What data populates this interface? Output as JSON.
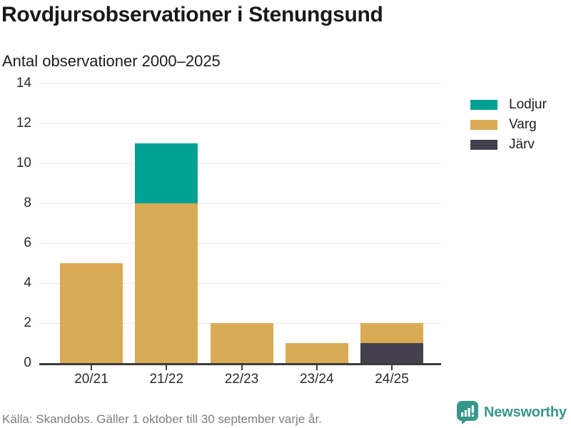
{
  "header": {
    "title": "Rovdjursobservationer i Stenungsund",
    "subtitle": "Antal observationer 2000–2025"
  },
  "chart_data": {
    "type": "bar",
    "stacked": true,
    "title": "Rovdjursobservationer i Stenungsund",
    "subtitle": "Antal observationer 2000–2025",
    "categories": [
      "20/21",
      "21/22",
      "22/23",
      "23/24",
      "24/25"
    ],
    "series": [
      {
        "name": "Lodjur",
        "color": "#00a094",
        "values": [
          0,
          3,
          0,
          0,
          0
        ]
      },
      {
        "name": "Varg",
        "color": "#d9ab55",
        "values": [
          5,
          8,
          2,
          1,
          1
        ]
      },
      {
        "name": "Järv",
        "color": "#44404e",
        "values": [
          0,
          0,
          0,
          0,
          1
        ]
      }
    ],
    "stack_order_bottom_to_top": [
      "Järv",
      "Varg",
      "Lodjur"
    ],
    "totals": [
      5,
      11,
      2,
      1,
      2
    ],
    "yticks": [
      0,
      2,
      4,
      6,
      8,
      10,
      12,
      14
    ],
    "ylim": [
      0,
      14
    ],
    "grid": true,
    "legend_position": "right",
    "xlabel": "",
    "ylabel": ""
  },
  "footer": {
    "source": "Källa: Skandobs. Gäller 1 oktober till 30 september varje år.",
    "brand": "Newsworthy"
  },
  "colors": {
    "lodjur_teal": "#00a094",
    "varg_tan": "#d9ab55",
    "jarv_dark": "#44404e",
    "brand_teal": "#38978b",
    "gridline": "#e7e7e7",
    "axis": "#3c3c3c",
    "footer_text": "#7e7e7e"
  }
}
